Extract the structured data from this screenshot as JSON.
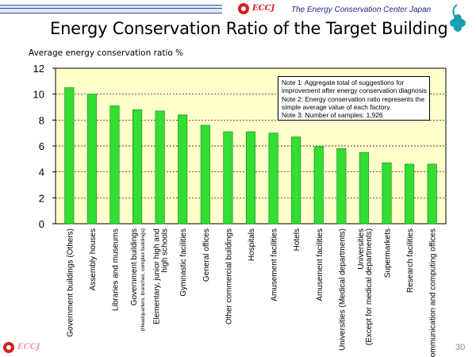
{
  "header": {
    "logo_text": "ECCJ",
    "organization": "The Energy Conservation Center Japan",
    "footer_logo_text": "ECCJ",
    "page_number": "30"
  },
  "slide": {
    "title": "Energy Conservation Ratio of the Target Building"
  },
  "colors": {
    "bar_fill": "#33dd33",
    "bar_stroke": "#118811",
    "plot_bg": "#ffffcc",
    "logo_red": "#d42020",
    "brand_blue": "#1a2a8a"
  },
  "chart_data": {
    "type": "bar",
    "title": "",
    "ylabel": "Average energy conservation ratio %",
    "xlabel": "",
    "ylim": [
      0,
      12
    ],
    "yticks": [
      0,
      2,
      4,
      6,
      8,
      10,
      12
    ],
    "grid": true,
    "categories": [
      [
        "Government buildings (Others)"
      ],
      [
        "Assembly houses"
      ],
      [
        "Libraries and museums"
      ],
      [
        "Government buildings",
        "(Headquarters, branches, complex buildings)"
      ],
      [
        "Elementary, junior high and",
        "high schools"
      ],
      [
        "Gymnastic facilities"
      ],
      [
        "General offices"
      ],
      [
        "Other commercial buildings"
      ],
      [
        "Hospitals"
      ],
      [
        "Amusement facilities"
      ],
      [
        "Hotels"
      ],
      [
        "Amusement facilities"
      ],
      [
        "Universities (Medical departments)"
      ],
      [
        "Universities",
        "(Except for medical departments)"
      ],
      [
        "Supermarkets"
      ],
      [
        "Research facilities"
      ],
      [
        "Communication and computing offices"
      ]
    ],
    "values": [
      10.5,
      10.0,
      9.1,
      8.8,
      8.7,
      8.4,
      7.6,
      7.1,
      7.1,
      7.0,
      6.7,
      5.95,
      5.8,
      5.5,
      4.7,
      4.6,
      4.6
    ],
    "notes": [
      "Note 1: Aggregate total of suggestions for",
      "improvement after energy conservation diagnosis",
      "Note 2: Energy conservation ratio represents the",
      "simple average value of each factory.",
      "Note 3: Number of samples: 1,926"
    ]
  }
}
